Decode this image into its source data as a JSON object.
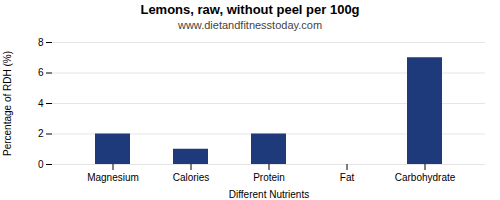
{
  "chart_data": {
    "type": "bar",
    "title": "Lemons, raw, without peel per 100g",
    "subtitle": "www.dietandfitnesstoday.com",
    "xlabel": "Different Nutrients",
    "ylabel": "Percentage of RDH (%)",
    "categories": [
      "Magnesium",
      "Calories",
      "Protein",
      "Fat",
      "Carbohydrate"
    ],
    "values": [
      2,
      1,
      2,
      0,
      7
    ],
    "color": "#1f3a7a",
    "ylim": [
      0,
      8
    ],
    "yticks": [
      0,
      2,
      4,
      6,
      8
    ],
    "grid": true
  }
}
